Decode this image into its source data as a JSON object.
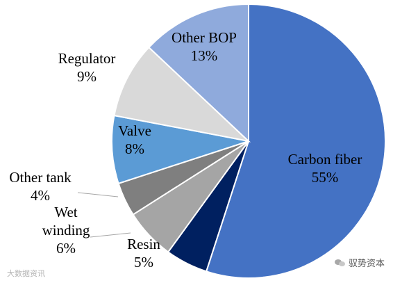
{
  "chart_data": {
    "type": "pie",
    "title": "",
    "slices": [
      {
        "label": "Carbon fiber",
        "value": 55,
        "pct": "55%",
        "color": "#4472c4"
      },
      {
        "label": "Resin",
        "value": 5,
        "pct": "5%",
        "color": "#002060"
      },
      {
        "label": "Wet winding",
        "label_lines": [
          "Wet",
          "winding"
        ],
        "value": 6,
        "pct": "6%",
        "color": "#a5a5a5"
      },
      {
        "label": "Other tank",
        "value": 4,
        "pct": "4%",
        "color": "#7f7f7f"
      },
      {
        "label": "Valve",
        "value": 8,
        "pct": "8%",
        "color": "#5b9bd5"
      },
      {
        "label": "Regulator",
        "value": 9,
        "pct": "9%",
        "color": "#d9d9d9"
      },
      {
        "label": "Other BOP",
        "value": 13,
        "pct": "13%",
        "color": "#8faadc"
      }
    ]
  },
  "watermarks": {
    "left": "大数据资讯",
    "right": "驭势资本"
  }
}
